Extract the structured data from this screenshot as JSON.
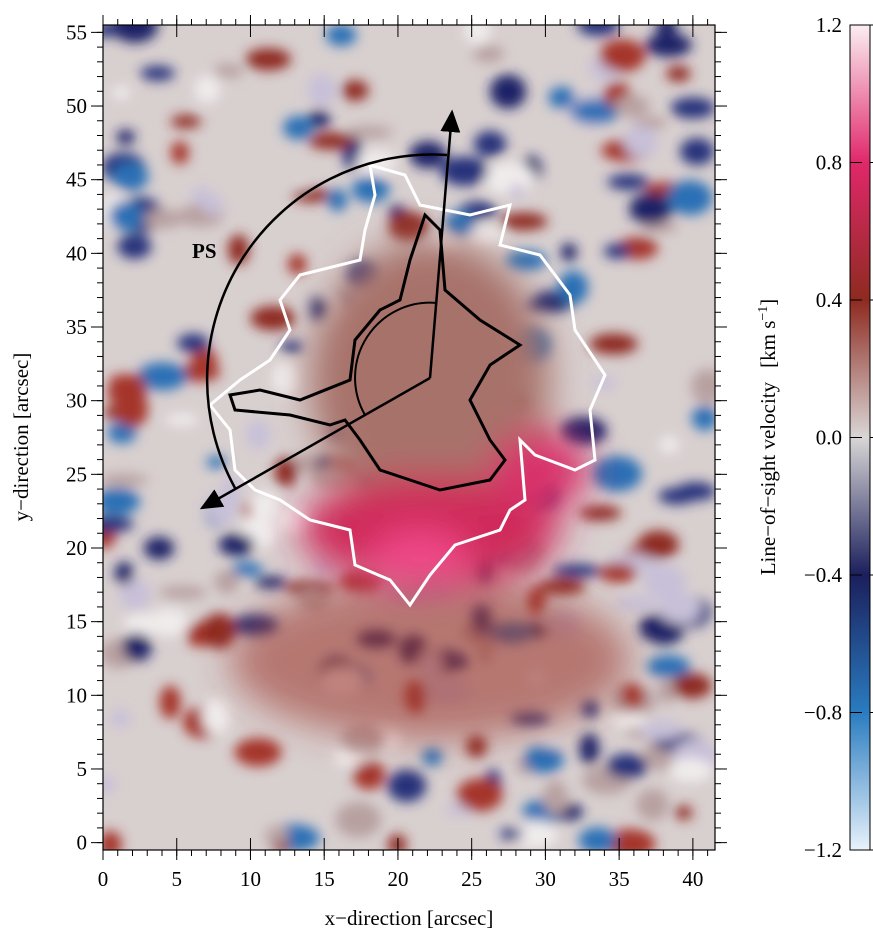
{
  "chart_data": {
    "type": "heatmap",
    "xlabel": "x−direction   [arcsec]",
    "ylabel": "y−direction   [arcsec]",
    "xlim": [
      0,
      41.5
    ],
    "ylim": [
      -0.5,
      55.5
    ],
    "xticks": [
      0,
      5,
      10,
      15,
      20,
      25,
      30,
      35,
      40
    ],
    "yticks": [
      0,
      5,
      10,
      15,
      20,
      25,
      30,
      35,
      40,
      45,
      50,
      55
    ],
    "x_minor_step": 1,
    "y_minor_step": 1,
    "annotation": "PS",
    "colorbar": {
      "label": "Line−of−sight velocity",
      "unit": [
        "[km s",
        "−1",
        "]"
      ],
      "lim": [
        -1.2,
        1.2
      ],
      "ticks": [
        {
          "value": -1.2,
          "label": "−1.2"
        },
        {
          "value": -0.8,
          "label": "−0.8"
        },
        {
          "value": -0.4,
          "label": "−0.4"
        },
        {
          "value": 0,
          "label": "0.0"
        },
        0.4,
        0.8,
        1.2
      ],
      "colors": [
        "#e8f2fb",
        "#2a7cc0",
        "#1b1f5c",
        "#d9d6d6",
        "#8e2a20",
        "#e0286a",
        "#fbeef2"
      ]
    }
  }
}
